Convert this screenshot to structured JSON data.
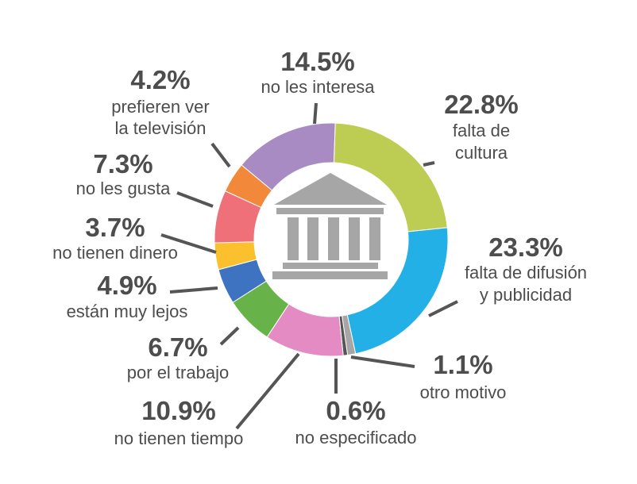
{
  "chart_data": {
    "type": "pie",
    "variant": "donut",
    "center_icon": "museum-building-icon",
    "slices": [
      {
        "value": 22.8,
        "pct_text": "22.8%",
        "label_lines": [
          "falta de",
          "cultura"
        ],
        "color": "#BDCC52"
      },
      {
        "value": 23.3,
        "pct_text": "23.3%",
        "label_lines": [
          "falta de difusión",
          "y publicidad"
        ],
        "color": "#23B0E6"
      },
      {
        "value": 1.1,
        "pct_text": "1.1%",
        "label_lines": [
          "otro motivo"
        ],
        "color": "#A6A6A6"
      },
      {
        "value": 0.6,
        "pct_text": "0.6%",
        "label_lines": [
          "no especificado"
        ],
        "color": "#555555"
      },
      {
        "value": 10.9,
        "pct_text": "10.9%",
        "label_lines": [
          "no tienen tiempo"
        ],
        "color": "#E58BC3"
      },
      {
        "value": 6.7,
        "pct_text": "6.7%",
        "label_lines": [
          "por el trabajo"
        ],
        "color": "#68B24A"
      },
      {
        "value": 4.9,
        "pct_text": "4.9%",
        "label_lines": [
          "están muy lejos"
        ],
        "color": "#3D73C0"
      },
      {
        "value": 3.7,
        "pct_text": "3.7%",
        "label_lines": [
          "no tienen dinero"
        ],
        "color": "#FBC02D"
      },
      {
        "value": 7.3,
        "pct_text": "7.3%",
        "label_lines": [
          "no les gusta"
        ],
        "color": "#F0707A"
      },
      {
        "value": 4.2,
        "pct_text": "4.2%",
        "label_lines": [
          "prefieren ver",
          "la televisión"
        ],
        "color": "#F2883A"
      },
      {
        "value": 14.5,
        "pct_text": "14.5%",
        "label_lines": [
          "no les interesa"
        ],
        "color": "#A98BC4"
      }
    ]
  }
}
